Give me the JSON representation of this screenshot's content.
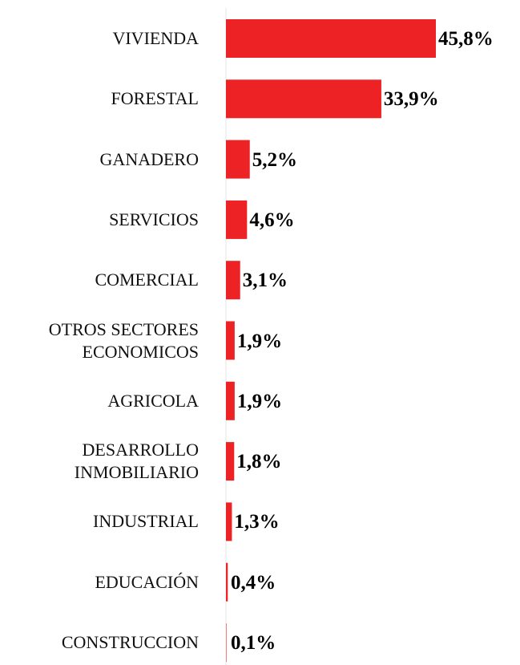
{
  "chart_data": {
    "type": "bar",
    "orientation": "horizontal",
    "categories": [
      "VIVIENDA",
      "FORESTAL",
      "GANADERO",
      "SERVICIOS",
      "COMERCIAL",
      "OTROS SECTORES\nECONOMICOS",
      "AGRICOLA",
      "DESARROLLO\nINMOBILIARIO",
      "INDUSTRIAL",
      "EDUCACIÓN",
      "CONSTRUCCION"
    ],
    "values": [
      45.8,
      33.9,
      5.2,
      4.6,
      3.1,
      1.9,
      1.9,
      1.8,
      1.3,
      0.4,
      0.1
    ],
    "value_labels": [
      "45,8%",
      "33,9%",
      "5,2%",
      "4,6%",
      "3,1%",
      "1,9%",
      "1,9%",
      "1,8%",
      "1,3%",
      "0,4%",
      "0,1%"
    ],
    "color": "#ed2224"
  }
}
